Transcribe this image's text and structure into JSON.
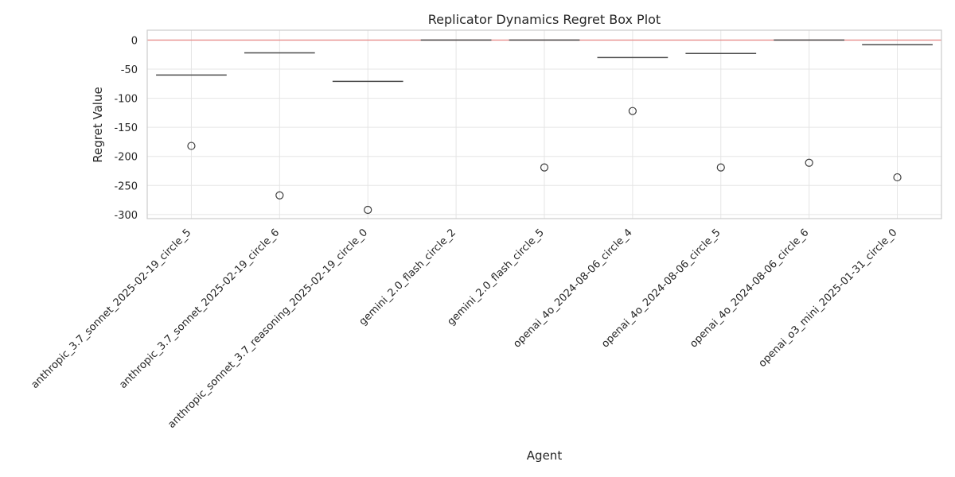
{
  "chart_data": {
    "type": "box",
    "title": "Replicator Dynamics Regret Box Plot",
    "xlabel": "Agent",
    "ylabel": "Regret Value",
    "ylim": [
      -307,
      17
    ],
    "yticks": [
      0,
      -50,
      -100,
      -150,
      -200,
      -250,
      -300
    ],
    "grid": true,
    "reference_line": {
      "y": 0,
      "color": "#e8908e"
    },
    "colors": {
      "box_line": "#4c4c4c",
      "grid": "#e5e5e5",
      "frame": "#cccccc",
      "outlier": "#3d3d3d"
    },
    "categories": [
      "anthropic_3.7_sonnet_2025-02-19_circle_5",
      "anthropic_3.7_sonnet_2025-02-19_circle_6",
      "anthropic_sonnet_3.7_reasoning_2025-02-19_circle_0",
      "gemini_2.0_flash_circle_2",
      "gemini_2.0_flash_circle_5",
      "openai_4o_2024-08-06_circle_4",
      "openai_4o_2024-08-06_circle_5",
      "openai_4o_2024-08-06_circle_6",
      "openai_o3_mini_2025-01-31_circle_0"
    ],
    "median": [
      -60,
      -22,
      -71,
      0,
      0,
      -30,
      -23,
      0,
      -8
    ],
    "outliers": [
      [
        -182
      ],
      [
        -267
      ],
      [
        -292
      ],
      [],
      [
        -219
      ],
      [
        -122
      ],
      [
        -219
      ],
      [
        -211
      ],
      [
        -236
      ]
    ]
  }
}
